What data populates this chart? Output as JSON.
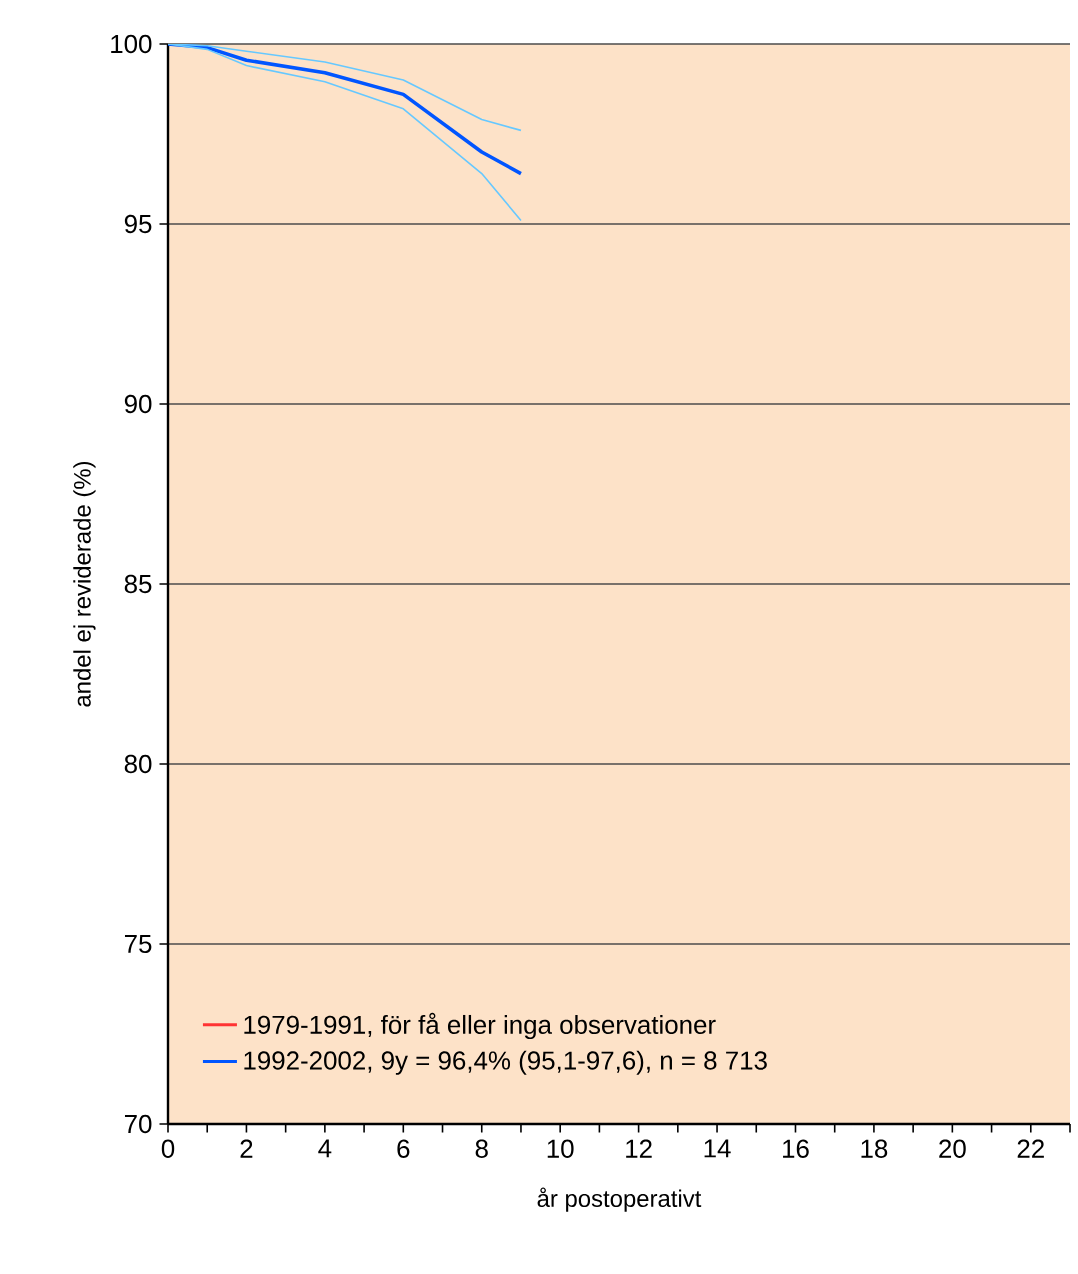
{
  "chart_data": {
    "type": "line",
    "xlabel": "år postoperativt",
    "ylabel": "andel ej reviderade (%)",
    "xlim": [
      0,
      23
    ],
    "ylim": [
      70,
      100
    ],
    "xticks": [
      0,
      {
        "value": 1,
        "label": null
      },
      2,
      {
        "value": 3,
        "label": null
      },
      4,
      {
        "value": 5,
        "label": null
      },
      6,
      {
        "value": 7,
        "label": null
      },
      8,
      {
        "value": 9,
        "label": null
      },
      10,
      {
        "value": 11,
        "label": null
      },
      12,
      {
        "value": 13,
        "label": null
      },
      14,
      {
        "value": 15,
        "label": null
      },
      16,
      {
        "value": 17,
        "label": null
      },
      18,
      {
        "value": 19,
        "label": null
      },
      20,
      {
        "value": 21,
        "label": null
      },
      22,
      {
        "value": 23,
        "label": null
      }
    ],
    "yticks": [
      70,
      75,
      80,
      85,
      90,
      95,
      100
    ],
    "grid": "y",
    "legend": "bottom left",
    "series": [
      {
        "name": "1979-1991, för få eller inga observationer",
        "color": "#ff3333"
      },
      {
        "name": "1992-2002, 9y = 96,4% (95,1-97,6), n = 8 713",
        "color": "#0055ff",
        "x": [
          0,
          1,
          2,
          4,
          6,
          8,
          9
        ],
        "values": [
          100,
          99.9,
          99.55,
          99.2,
          98.6,
          97.0,
          96.4
        ]
      },
      {
        "color": "#66c8ff",
        "x": [
          0,
          1,
          2,
          4,
          6,
          8,
          9
        ],
        "values": [
          100,
          99.95,
          99.8,
          99.5,
          99.0,
          97.9,
          97.6
        ]
      },
      {
        "color": "#66c8ff",
        "x": [
          0,
          1,
          2,
          4,
          6,
          8,
          9
        ],
        "values": [
          100,
          99.85,
          99.4,
          98.95,
          98.2,
          96.4,
          95.1
        ]
      }
    ]
  }
}
